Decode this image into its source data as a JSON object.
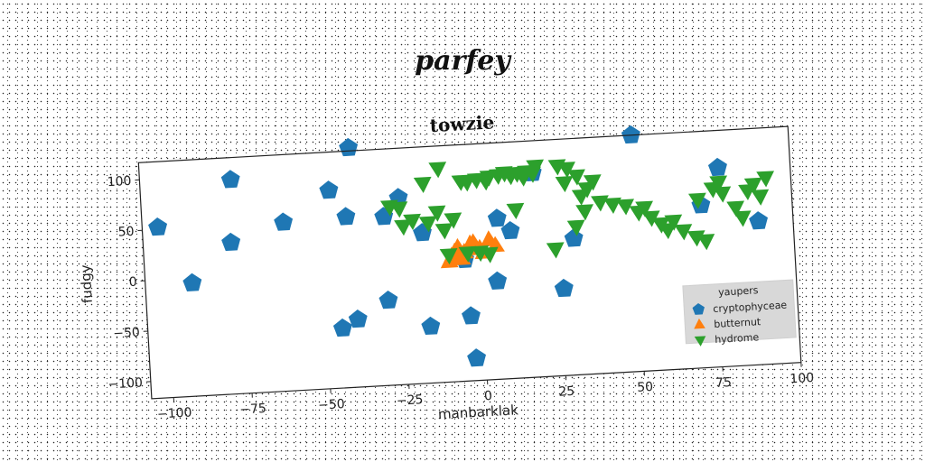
{
  "suptitle": "parfey",
  "chart_data": {
    "type": "scatter",
    "title": "towzie",
    "xlabel": "manbarklak",
    "ylabel": "fudgy",
    "xlim": [
      -107,
      100
    ],
    "ylim": [
      -117,
      117
    ],
    "xticks": [
      -100,
      -75,
      -50,
      -25,
      0,
      25,
      50,
      75,
      100
    ],
    "xtick_labels": [
      "−100",
      "−75",
      "−50",
      "−25",
      "0",
      "25",
      "50",
      "75",
      "100"
    ],
    "yticks": [
      -100,
      -50,
      0,
      50,
      100
    ],
    "ytick_labels": [
      "−100",
      "−50",
      "0",
      "50",
      "100"
    ],
    "grid": false,
    "legend": {
      "title": "yaupers",
      "position": "lower-right"
    },
    "series": [
      {
        "name": "cryptophyceae",
        "marker": "pentagon",
        "color": "#1f77b4",
        "points": [
          [
            -102,
            52
          ],
          [
            -78,
            95
          ],
          [
            -92,
            -5
          ],
          [
            -62,
            50
          ],
          [
            -47,
            79
          ],
          [
            -42,
            52
          ],
          [
            -40,
            120
          ],
          [
            -30,
            50
          ],
          [
            -25,
            68
          ],
          [
            -79,
            33
          ],
          [
            -18,
            32
          ],
          [
            -30,
            -33
          ],
          [
            -40,
            -50
          ],
          [
            -45,
            -58
          ],
          [
            -17,
            -61
          ],
          [
            -4,
            -53
          ],
          [
            -3,
            -95
          ],
          [
            5,
            -20
          ],
          [
            6,
            42
          ],
          [
            10,
            29
          ],
          [
            18,
            85
          ],
          [
            30,
            18
          ],
          [
            26,
            -31
          ],
          [
            50,
            117
          ],
          [
            71,
            44
          ],
          [
            77,
            80
          ],
          [
            89,
            25
          ],
          [
            -5,
            3
          ]
        ]
      },
      {
        "name": "butternut",
        "marker": "triangle-up",
        "color": "#ff7f0e",
        "points": [
          [
            -9,
            7
          ],
          [
            -7,
            15
          ],
          [
            -5,
            10
          ],
          [
            -2,
            19
          ],
          [
            0,
            13
          ],
          [
            3,
            21
          ],
          [
            5,
            15
          ],
          [
            -10,
            2
          ],
          [
            -6,
            4
          ],
          [
            -3,
            18
          ],
          [
            1,
            9
          ],
          [
            -8,
            11
          ]
        ]
      },
      {
        "name": "hydrome",
        "marker": "triangle-down",
        "color": "#2ca02c",
        "points": [
          [
            -25,
            58
          ],
          [
            -21,
            45
          ],
          [
            -16,
            42
          ],
          [
            -13,
            52
          ],
          [
            -11,
            34
          ],
          [
            -8,
            44
          ],
          [
            -5,
            81
          ],
          [
            -3,
            80
          ],
          [
            0,
            82
          ],
          [
            3,
            80
          ],
          [
            4,
            84
          ],
          [
            7,
            85
          ],
          [
            9,
            87
          ],
          [
            11,
            84
          ],
          [
            13,
            86
          ],
          [
            16,
            87
          ],
          [
            18,
            85
          ],
          [
            19,
            92
          ],
          [
            15,
            82
          ],
          [
            -12,
            95
          ],
          [
            26,
            91
          ],
          [
            29,
            88
          ],
          [
            32,
            80
          ],
          [
            28,
            74
          ],
          [
            33,
            60
          ],
          [
            35,
            67
          ],
          [
            37,
            74
          ],
          [
            39,
            53
          ],
          [
            43,
            50
          ],
          [
            47,
            48
          ],
          [
            51,
            41
          ],
          [
            53,
            45
          ],
          [
            55,
            35
          ],
          [
            58,
            28
          ],
          [
            60,
            22
          ],
          [
            62,
            30
          ],
          [
            65,
            20
          ],
          [
            69,
            13
          ],
          [
            72,
            9
          ],
          [
            70,
            50
          ],
          [
            75,
            60
          ],
          [
            77,
            66
          ],
          [
            78,
            55
          ],
          [
            82,
            40
          ],
          [
            84,
            30
          ],
          [
            86,
            56
          ],
          [
            88,
            62
          ],
          [
            90,
            50
          ],
          [
            92,
            68
          ],
          [
            -17,
            81
          ],
          [
            -28,
            60
          ],
          [
            -24,
            40
          ],
          [
            -4,
            10
          ],
          [
            0,
            10
          ],
          [
            3,
            8
          ],
          [
            -10,
            9
          ],
          [
            24,
            9
          ],
          [
            31,
            30
          ],
          [
            34,
            45
          ],
          [
            12,
            50
          ]
        ]
      }
    ]
  }
}
